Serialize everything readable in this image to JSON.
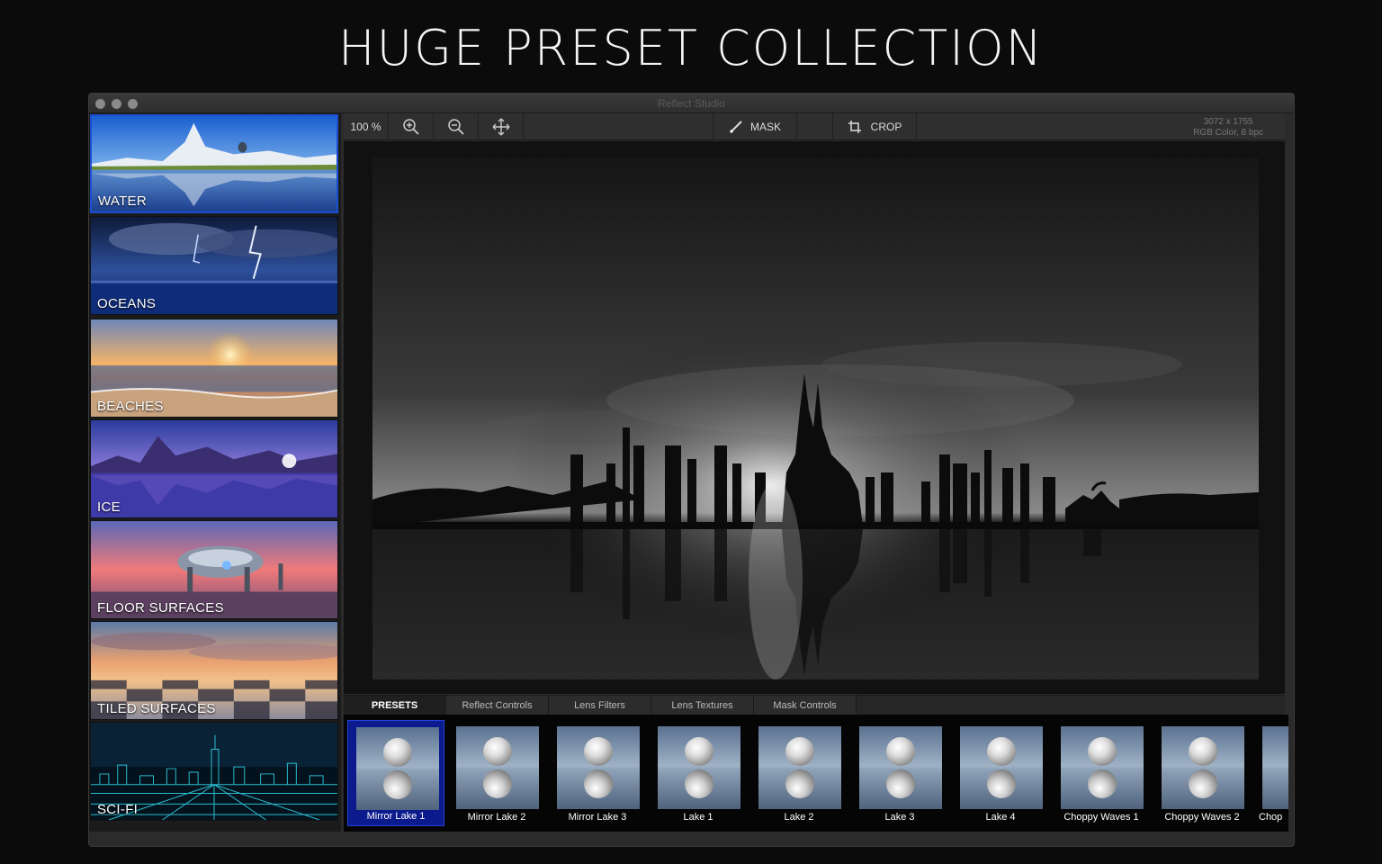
{
  "headline": "HUGE PRESET COLLECTION",
  "window": {
    "title": "Reflect Studio"
  },
  "sidebar": {
    "categories": [
      {
        "label": "WATER",
        "selected": true
      },
      {
        "label": "OCEANS",
        "selected": false
      },
      {
        "label": "BEACHES",
        "selected": false
      },
      {
        "label": "ICE",
        "selected": false
      },
      {
        "label": "FLOOR SURFACES",
        "selected": false
      },
      {
        "label": "TILED SURFACES",
        "selected": false
      },
      {
        "label": "SCI-FI",
        "selected": false
      }
    ]
  },
  "toolbar": {
    "zoom": "100 %",
    "zoom_in_icon": "zoom-in-icon",
    "zoom_out_icon": "zoom-out-icon",
    "pan_icon": "move-icon",
    "mask_label": "MASK",
    "crop_label": "CROP",
    "image_size": "3072 x 1755",
    "color_mode": "RGB Color, 8 bpc"
  },
  "tabs": [
    {
      "label": "PRESETS",
      "active": true
    },
    {
      "label": "Reflect Controls",
      "active": false
    },
    {
      "label": "Lens Filters",
      "active": false
    },
    {
      "label": "Lens Textures",
      "active": false
    },
    {
      "label": "Mask Controls",
      "active": false
    }
  ],
  "presets": [
    {
      "label": "Mirror Lake 1",
      "selected": true
    },
    {
      "label": "Mirror Lake 2",
      "selected": false
    },
    {
      "label": "Mirror Lake 3",
      "selected": false
    },
    {
      "label": "Lake 1",
      "selected": false
    },
    {
      "label": "Lake 2",
      "selected": false
    },
    {
      "label": "Lake 3",
      "selected": false
    },
    {
      "label": "Lake 4",
      "selected": false
    },
    {
      "label": "Choppy Waves 1",
      "selected": false
    },
    {
      "label": "Choppy Waves 2",
      "selected": false
    },
    {
      "label": "Chop",
      "selected": false
    }
  ],
  "colors": {
    "accent": "#1b4fd1",
    "preset_selected": "#0b1a8c"
  }
}
